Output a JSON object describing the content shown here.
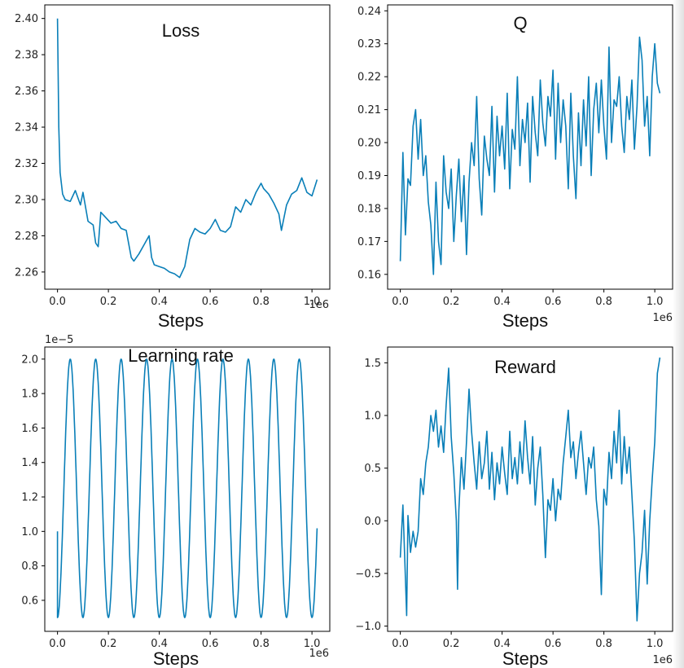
{
  "figure": {
    "line_color": "#0a7fb8"
  },
  "chart_data": [
    {
      "id": "loss",
      "type": "line",
      "title": "Loss",
      "xlabel": "Steps",
      "x_offset_label": "1e6",
      "y_offset_label": "",
      "xlim": [
        -0.05,
        1.07
      ],
      "ylim": [
        2.2505,
        2.4075
      ],
      "xticks": [
        0.0,
        0.2,
        0.4,
        0.6,
        0.8,
        1.0
      ],
      "xtick_labels": [
        "0.0",
        "0.2",
        "0.4",
        "0.6",
        "0.8",
        "1.0"
      ],
      "yticks": [
        2.26,
        2.28,
        2.3,
        2.32,
        2.34,
        2.36,
        2.38,
        2.4
      ],
      "ytick_labels": [
        "2.26",
        "2.28",
        "2.30",
        "2.32",
        "2.34",
        "2.36",
        "2.38",
        "2.40"
      ],
      "x": [
        0.0,
        0.005,
        0.01,
        0.02,
        0.03,
        0.05,
        0.07,
        0.09,
        0.1,
        0.12,
        0.14,
        0.15,
        0.16,
        0.17,
        0.19,
        0.21,
        0.23,
        0.25,
        0.27,
        0.29,
        0.3,
        0.32,
        0.34,
        0.36,
        0.37,
        0.38,
        0.4,
        0.42,
        0.44,
        0.46,
        0.48,
        0.5,
        0.52,
        0.54,
        0.56,
        0.58,
        0.6,
        0.62,
        0.64,
        0.66,
        0.68,
        0.7,
        0.72,
        0.74,
        0.76,
        0.78,
        0.8,
        0.81,
        0.83,
        0.85,
        0.87,
        0.88,
        0.9,
        0.92,
        0.94,
        0.96,
        0.98,
        1.0,
        1.02
      ],
      "y": [
        2.4,
        2.34,
        2.315,
        2.303,
        2.3,
        2.299,
        2.305,
        2.297,
        2.304,
        2.288,
        2.286,
        2.276,
        2.274,
        2.293,
        2.29,
        2.287,
        2.288,
        2.284,
        2.283,
        2.268,
        2.266,
        2.27,
        2.275,
        2.28,
        2.268,
        2.264,
        2.263,
        2.262,
        2.26,
        2.259,
        2.257,
        2.263,
        2.278,
        2.284,
        2.282,
        2.281,
        2.284,
        2.289,
        2.283,
        2.282,
        2.285,
        2.296,
        2.293,
        2.3,
        2.297,
        2.304,
        2.309,
        2.306,
        2.303,
        2.298,
        2.292,
        2.283,
        2.297,
        2.303,
        2.305,
        2.312,
        2.304,
        2.302,
        2.311
      ]
    },
    {
      "id": "q",
      "type": "line",
      "title": "Q",
      "xlabel": "Steps",
      "x_offset_label": "1e6",
      "y_offset_label": "",
      "xlim": [
        -0.05,
        1.07
      ],
      "ylim": [
        0.1555,
        0.2418
      ],
      "xticks": [
        0.0,
        0.2,
        0.4,
        0.6,
        0.8,
        1.0
      ],
      "xtick_labels": [
        "0.0",
        "0.2",
        "0.4",
        "0.6",
        "0.8",
        "1.0"
      ],
      "yticks": [
        0.16,
        0.17,
        0.18,
        0.19,
        0.2,
        0.21,
        0.22,
        0.23,
        0.24
      ],
      "ytick_labels": [
        "0.16",
        "0.17",
        "0.18",
        "0.19",
        "0.20",
        "0.21",
        "0.22",
        "0.23",
        "0.24"
      ],
      "x": [
        0.0,
        0.01,
        0.02,
        0.03,
        0.04,
        0.05,
        0.06,
        0.07,
        0.08,
        0.09,
        0.1,
        0.11,
        0.12,
        0.13,
        0.14,
        0.15,
        0.16,
        0.17,
        0.18,
        0.19,
        0.2,
        0.21,
        0.22,
        0.23,
        0.24,
        0.25,
        0.26,
        0.27,
        0.28,
        0.29,
        0.3,
        0.31,
        0.32,
        0.33,
        0.34,
        0.35,
        0.36,
        0.37,
        0.38,
        0.39,
        0.4,
        0.41,
        0.42,
        0.43,
        0.44,
        0.45,
        0.46,
        0.47,
        0.48,
        0.49,
        0.5,
        0.51,
        0.52,
        0.53,
        0.54,
        0.55,
        0.56,
        0.57,
        0.58,
        0.59,
        0.6,
        0.61,
        0.62,
        0.63,
        0.64,
        0.65,
        0.66,
        0.67,
        0.68,
        0.69,
        0.7,
        0.71,
        0.72,
        0.73,
        0.74,
        0.75,
        0.76,
        0.77,
        0.78,
        0.79,
        0.8,
        0.81,
        0.82,
        0.83,
        0.84,
        0.85,
        0.86,
        0.87,
        0.88,
        0.89,
        0.9,
        0.91,
        0.92,
        0.93,
        0.94,
        0.95,
        0.96,
        0.97,
        0.98,
        0.99,
        1.0,
        1.01,
        1.02
      ],
      "y": [
        0.164,
        0.197,
        0.172,
        0.189,
        0.187,
        0.205,
        0.21,
        0.195,
        0.207,
        0.19,
        0.196,
        0.182,
        0.175,
        0.16,
        0.188,
        0.17,
        0.163,
        0.196,
        0.185,
        0.18,
        0.192,
        0.17,
        0.184,
        0.195,
        0.176,
        0.19,
        0.166,
        0.188,
        0.2,
        0.193,
        0.214,
        0.189,
        0.178,
        0.202,
        0.195,
        0.19,
        0.211,
        0.185,
        0.208,
        0.196,
        0.205,
        0.192,
        0.215,
        0.186,
        0.204,
        0.198,
        0.22,
        0.193,
        0.207,
        0.2,
        0.212,
        0.188,
        0.214,
        0.203,
        0.196,
        0.219,
        0.206,
        0.199,
        0.214,
        0.208,
        0.222,
        0.195,
        0.218,
        0.2,
        0.213,
        0.205,
        0.186,
        0.215,
        0.196,
        0.183,
        0.209,
        0.193,
        0.213,
        0.199,
        0.22,
        0.19,
        0.21,
        0.218,
        0.203,
        0.219,
        0.205,
        0.195,
        0.229,
        0.2,
        0.213,
        0.211,
        0.22,
        0.205,
        0.197,
        0.214,
        0.207,
        0.219,
        0.198,
        0.211,
        0.232,
        0.225,
        0.205,
        0.214,
        0.196,
        0.22,
        0.23,
        0.218,
        0.215
      ]
    },
    {
      "id": "learning_rate",
      "type": "line",
      "title": "Learning rate",
      "xlabel": "Steps",
      "x_offset_label": "1e6",
      "y_offset_label": "1e−5",
      "xlim": [
        -0.05,
        1.07
      ],
      "ylim": [
        0.42,
        2.07
      ],
      "xticks": [
        0.0,
        0.2,
        0.4,
        0.6,
        0.8,
        1.0
      ],
      "xtick_labels": [
        "0.0",
        "0.2",
        "0.4",
        "0.6",
        "0.8",
        "1.0"
      ],
      "yticks": [
        0.6,
        0.8,
        1.0,
        1.2,
        1.4,
        1.6,
        1.8,
        2.0
      ],
      "ytick_labels": [
        "0.6",
        "0.8",
        "1.0",
        "1.2",
        "1.4",
        "1.6",
        "1.8",
        "2.0"
      ],
      "period": 0.1,
      "x_start": 0.0,
      "x_end": 1.02,
      "y_start": 1.0,
      "min": 0.5,
      "max": 2.0
    },
    {
      "id": "reward",
      "type": "line",
      "title": "Reward",
      "xlabel": "Steps",
      "x_offset_label": "1e6",
      "y_offset_label": "",
      "xlim": [
        -0.05,
        1.07
      ],
      "ylim": [
        -1.05,
        1.65
      ],
      "xticks": [
        0.0,
        0.2,
        0.4,
        0.6,
        0.8,
        1.0
      ],
      "xtick_labels": [
        "0.0",
        "0.2",
        "0.4",
        "0.6",
        "0.8",
        "1.0"
      ],
      "yticks": [
        -1.0,
        -0.5,
        0.0,
        0.5,
        1.0,
        1.5
      ],
      "ytick_labels": [
        "−1.0",
        "−0.5",
        "0.0",
        "0.5",
        "1.0",
        "1.5"
      ],
      "x": [
        0.0,
        0.01,
        0.02,
        0.025,
        0.03,
        0.04,
        0.05,
        0.06,
        0.07,
        0.08,
        0.09,
        0.1,
        0.11,
        0.12,
        0.13,
        0.14,
        0.15,
        0.16,
        0.17,
        0.18,
        0.19,
        0.2,
        0.21,
        0.22,
        0.225,
        0.23,
        0.24,
        0.25,
        0.26,
        0.27,
        0.28,
        0.29,
        0.3,
        0.31,
        0.32,
        0.33,
        0.34,
        0.35,
        0.36,
        0.37,
        0.38,
        0.39,
        0.4,
        0.41,
        0.42,
        0.43,
        0.44,
        0.45,
        0.46,
        0.47,
        0.48,
        0.49,
        0.5,
        0.51,
        0.52,
        0.53,
        0.54,
        0.55,
        0.56,
        0.57,
        0.58,
        0.59,
        0.6,
        0.61,
        0.62,
        0.63,
        0.64,
        0.65,
        0.66,
        0.67,
        0.68,
        0.69,
        0.7,
        0.71,
        0.72,
        0.73,
        0.74,
        0.75,
        0.76,
        0.77,
        0.78,
        0.79,
        0.8,
        0.81,
        0.82,
        0.83,
        0.84,
        0.85,
        0.86,
        0.87,
        0.88,
        0.89,
        0.9,
        0.91,
        0.92,
        0.93,
        0.94,
        0.95,
        0.96,
        0.97,
        0.98,
        0.99,
        1.0,
        1.01,
        1.02
      ],
      "y": [
        -0.35,
        0.15,
        -0.55,
        -0.9,
        0.05,
        -0.3,
        -0.1,
        -0.25,
        -0.1,
        0.4,
        0.25,
        0.55,
        0.7,
        1.0,
        0.85,
        1.05,
        0.7,
        0.9,
        0.65,
        1.1,
        1.45,
        0.8,
        0.45,
        0.0,
        -0.65,
        0.1,
        0.6,
        0.3,
        0.75,
        1.25,
        0.85,
        0.55,
        0.3,
        0.75,
        0.4,
        0.55,
        0.85,
        0.3,
        0.65,
        0.2,
        0.55,
        0.35,
        0.7,
        0.45,
        0.25,
        0.85,
        0.4,
        0.6,
        0.35,
        0.75,
        0.45,
        0.95,
        0.6,
        0.35,
        0.8,
        0.15,
        0.5,
        0.7,
        0.25,
        -0.35,
        0.2,
        0.1,
        0.4,
        0.0,
        0.3,
        0.2,
        0.55,
        0.8,
        1.05,
        0.6,
        0.75,
        0.4,
        0.65,
        0.85,
        0.55,
        0.25,
        0.6,
        0.5,
        0.7,
        0.2,
        -0.05,
        -0.7,
        0.3,
        0.15,
        0.65,
        0.4,
        0.85,
        0.55,
        1.05,
        0.35,
        0.8,
        0.45,
        0.7,
        0.25,
        -0.2,
        -0.95,
        -0.5,
        -0.3,
        0.1,
        -0.6,
        0.0,
        0.4,
        0.75,
        1.4,
        1.55
      ]
    }
  ]
}
